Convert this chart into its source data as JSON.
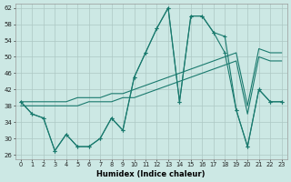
{
  "xlabel": "Humidex (Indice chaleur)",
  "bg_color": "#cce8e4",
  "line_color": "#1a7a6e",
  "grid_color": "#adc8c4",
  "xlim": [
    -0.5,
    23.5
  ],
  "ylim": [
    25,
    63
  ],
  "yticks": [
    26,
    30,
    34,
    38,
    42,
    46,
    50,
    54,
    58,
    62
  ],
  "xticks": [
    0,
    1,
    2,
    3,
    4,
    5,
    6,
    7,
    8,
    9,
    10,
    11,
    12,
    13,
    14,
    15,
    16,
    17,
    18,
    19,
    20,
    21,
    22,
    23
  ],
  "y_main": [
    39,
    36,
    35,
    27,
    31,
    28,
    28,
    30,
    35,
    32,
    45,
    51,
    57,
    62,
    39,
    60,
    60,
    56,
    51,
    37,
    28,
    42,
    39,
    39
  ],
  "y_line2": [
    39,
    36,
    35,
    27,
    31,
    28,
    28,
    30,
    35,
    32,
    45,
    51,
    57,
    62,
    39,
    60,
    60,
    56,
    55,
    37,
    28,
    42,
    39,
    39
  ],
  "y_trend1": [
    39,
    39,
    39,
    39,
    39,
    40,
    40,
    40,
    41,
    41,
    42,
    43,
    44,
    45,
    46,
    47,
    48,
    49,
    50,
    51,
    38,
    52,
    51,
    51
  ],
  "y_trend2": [
    38,
    38,
    38,
    38,
    38,
    38,
    39,
    39,
    39,
    40,
    40,
    41,
    42,
    43,
    44,
    45,
    46,
    47,
    48,
    49,
    36,
    50,
    49,
    49
  ]
}
